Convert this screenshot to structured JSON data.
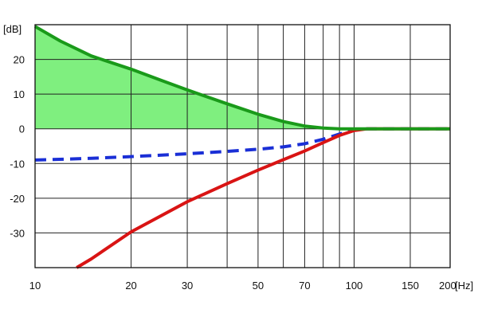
{
  "chart_data": {
    "type": "line",
    "xscale": "log",
    "xlim": [
      10,
      200
    ],
    "ylim": [
      -40,
      30
    ],
    "grid": true,
    "xunit": "[Hz]",
    "yunit": "[dB]",
    "x_ticks": [
      10,
      20,
      30,
      50,
      70,
      100,
      150,
      200
    ],
    "x_gridlines": [
      20,
      30,
      40,
      50,
      60,
      70,
      80,
      90,
      100,
      150
    ],
    "y_ticks": [
      20,
      10,
      0,
      -10,
      -20,
      -30
    ],
    "series": [
      {
        "color": "#1a9a1a",
        "style": "solid",
        "fill": "#7fef7f",
        "x": [
          10,
          12,
          15,
          20,
          25,
          30,
          40,
          50,
          60,
          70,
          80,
          90,
          100,
          110,
          120,
          200
        ],
        "y": [
          29.5,
          25.3,
          21.0,
          17.2,
          13.9,
          11.2,
          7.2,
          4.2,
          2.1,
          0.8,
          0.2,
          0,
          0,
          0,
          0,
          0
        ]
      },
      {
        "color": "#1a2fd6",
        "style": "dashed",
        "x": [
          10,
          15,
          20,
          30,
          40,
          50,
          60,
          70,
          80,
          90,
          100,
          110,
          120,
          200
        ],
        "y": [
          -9,
          -8.5,
          -8.0,
          -7.2,
          -6.5,
          -5.9,
          -5.2,
          -4.3,
          -3.0,
          -1.5,
          -0.4,
          0,
          0,
          0
        ]
      },
      {
        "color": "#d91414",
        "style": "solid",
        "x": [
          13.5,
          15,
          20,
          30,
          40,
          50,
          60,
          70,
          80,
          90,
          100,
          110,
          120,
          200
        ],
        "y": [
          -40,
          -37.5,
          -29.7,
          -21.0,
          -15.8,
          -11.9,
          -8.9,
          -6.4,
          -4.0,
          -1.9,
          -0.5,
          0,
          0,
          0
        ]
      }
    ]
  }
}
